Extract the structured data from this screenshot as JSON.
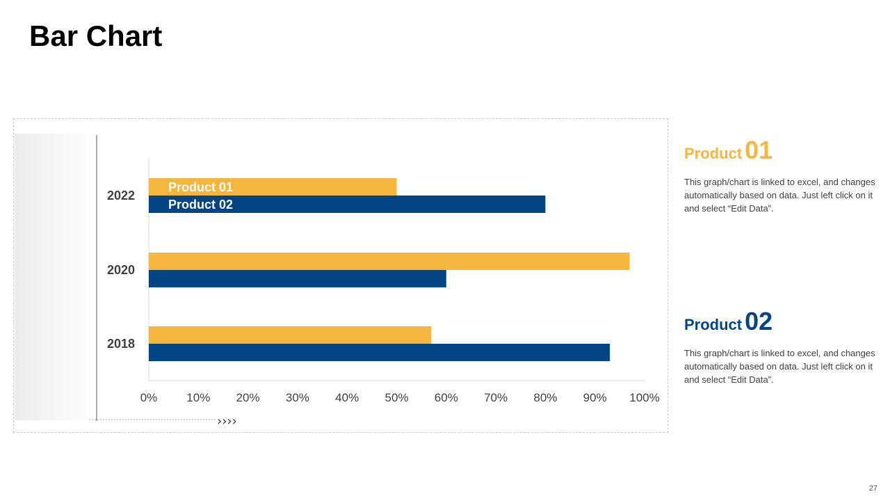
{
  "slide": {
    "title": "Bar Chart",
    "page_number": "27",
    "arrows": "››››"
  },
  "colors": {
    "product01": "#F4B63F",
    "product02": "#034484",
    "axis": "#d9d9d9",
    "label": "#404040"
  },
  "chart_data": {
    "type": "bar",
    "orientation": "horizontal",
    "title": "",
    "xlabel": "",
    "ylabel": "",
    "categories": [
      "2022",
      "2020",
      "2018"
    ],
    "series": [
      {
        "name": "Product 01",
        "values": [
          50,
          97,
          57
        ]
      },
      {
        "name": "Product 02",
        "values": [
          80,
          60,
          93
        ]
      }
    ],
    "xlim": [
      0,
      100
    ],
    "x_ticks": [
      "0%",
      "10%",
      "20%",
      "30%",
      "40%",
      "50%",
      "60%",
      "70%",
      "80%",
      "90%",
      "100%"
    ],
    "legend_location": "top-left"
  },
  "panels": [
    {
      "word": "Product",
      "number": "01",
      "body": "This graph/chart is linked to excel, and changes automatically based on data. Just left click on it and select “Edit Data”."
    },
    {
      "word": "Product",
      "number": "02",
      "body": "This graph/chart is linked to excel, and changes automatically based on data. Just left click on it and select “Edit Data”."
    }
  ]
}
